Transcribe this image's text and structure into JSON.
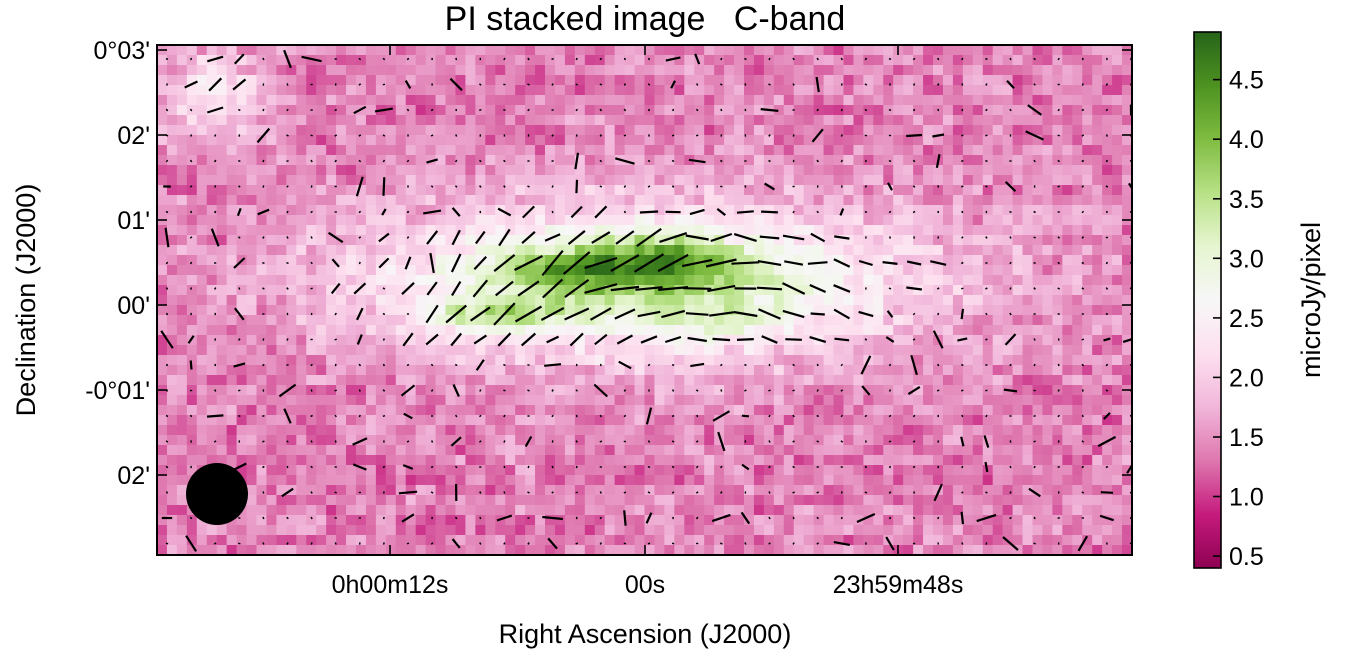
{
  "chart_data": {
    "type": "heatmap",
    "title": "PI stacked image   C-band",
    "xlabel": "Right Ascension (J2000)",
    "ylabel": "Declination (J2000)",
    "x_tick_labels": [
      "0h00m12s",
      "00s",
      "23h59m48s"
    ],
    "y_tick_labels": [
      "0°03'",
      "02'",
      "01'",
      "00'",
      "-0°01'",
      "02'"
    ],
    "colorbar": {
      "label": "microJy/pixel",
      "range": [
        0.4,
        4.9
      ],
      "tick_values": [
        0.5,
        1.0,
        1.5,
        2.0,
        2.5,
        3.0,
        3.5,
        4.0,
        4.5
      ],
      "tick_labels": [
        "0.5",
        "1.0",
        "1.5",
        "2.0",
        "2.5",
        "3.0",
        "3.5",
        "4.0",
        "4.5"
      ],
      "colormap": "PiYG",
      "colors": [
        "#8e0152",
        "#c51b7d",
        "#de77ae",
        "#f1b6da",
        "#fde0ef",
        "#f7f7f7",
        "#e6f5d0",
        "#b8e186",
        "#7fbc41",
        "#4d9221",
        "#276419"
      ]
    },
    "beam": "filled-circle-bottom-left",
    "vectors": "polarization-angle-dashes",
    "grid": false
  }
}
